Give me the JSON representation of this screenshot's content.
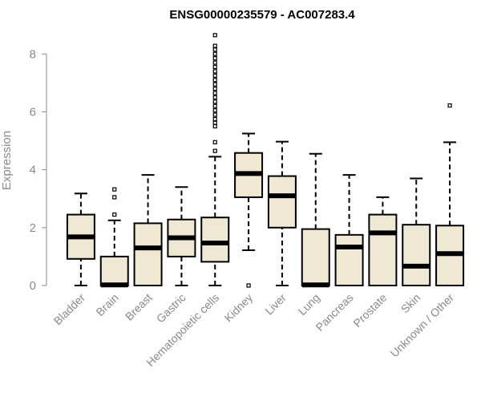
{
  "chart_data": {
    "type": "box",
    "title": "ENSG00000235579 - AC007283.4",
    "xlabel": "",
    "ylabel": "Expression",
    "ylim": [
      0,
      8.7
    ],
    "yticks": [
      0,
      2,
      4,
      6,
      8
    ],
    "grid": false,
    "colors": {
      "box_fill": "#efe8d2",
      "box_stroke": "#000000",
      "axis": "#8a8a8a"
    },
    "categories": [
      "Bladder",
      "Brain",
      "Breast",
      "Gastric",
      "Hematopoietic cells",
      "Kidney",
      "Liver",
      "Lung",
      "Pancreas",
      "Prostate",
      "Skin",
      "Unknown / Other"
    ],
    "boxes": [
      {
        "category": "Bladder",
        "whisker_low": 0,
        "q1": 0.92,
        "median": 1.68,
        "q3": 2.45,
        "whisker_high": 3.18,
        "outliers": []
      },
      {
        "category": "Brain",
        "whisker_low": 0,
        "q1": 0,
        "median": 0.02,
        "q3": 1.0,
        "whisker_high": 2.25,
        "outliers": [
          2.45,
          3.05,
          3.32
        ]
      },
      {
        "category": "Breast",
        "whisker_low": 0,
        "q1": 0,
        "median": 1.3,
        "q3": 2.15,
        "whisker_high": 3.82,
        "outliers": []
      },
      {
        "category": "Gastric",
        "whisker_low": 0,
        "q1": 1.0,
        "median": 1.65,
        "q3": 2.28,
        "whisker_high": 3.4,
        "outliers": []
      },
      {
        "category": "Hematopoietic cells",
        "whisker_low": 0,
        "q1": 0.82,
        "median": 1.47,
        "q3": 2.35,
        "whisker_high": 4.45,
        "outliers": [
          4.65,
          4.95,
          5.5,
          5.62,
          5.75,
          5.9,
          6.05,
          6.2,
          6.35,
          6.5,
          6.65,
          6.8,
          6.95,
          7.1,
          7.25,
          7.4,
          7.55,
          7.7,
          7.85,
          8.0,
          8.15,
          8.28,
          8.65
        ]
      },
      {
        "category": "Kidney",
        "whisker_low": 1.22,
        "q1": 3.05,
        "median": 3.87,
        "q3": 4.58,
        "whisker_high": 5.25,
        "outliers": [
          0
        ]
      },
      {
        "category": "Liver",
        "whisker_low": 0,
        "q1": 2.0,
        "median": 3.1,
        "q3": 3.78,
        "whisker_high": 4.97,
        "outliers": []
      },
      {
        "category": "Lung",
        "whisker_low": 0,
        "q1": 0,
        "median": 0.02,
        "q3": 1.95,
        "whisker_high": 4.55,
        "outliers": []
      },
      {
        "category": "Pancreas",
        "whisker_low": 0,
        "q1": 0,
        "median": 1.33,
        "q3": 1.75,
        "whisker_high": 3.82,
        "outliers": []
      },
      {
        "category": "Prostate",
        "whisker_low": 0,
        "q1": 0,
        "median": 1.82,
        "q3": 2.45,
        "whisker_high": 3.05,
        "outliers": []
      },
      {
        "category": "Skin",
        "whisker_low": 0,
        "q1": 0,
        "median": 0.67,
        "q3": 2.1,
        "whisker_high": 3.7,
        "outliers": []
      },
      {
        "category": "Unknown / Other",
        "whisker_low": 0,
        "q1": 0,
        "median": 1.1,
        "q3": 2.07,
        "whisker_high": 4.95,
        "outliers": [
          6.22
        ]
      }
    ]
  }
}
